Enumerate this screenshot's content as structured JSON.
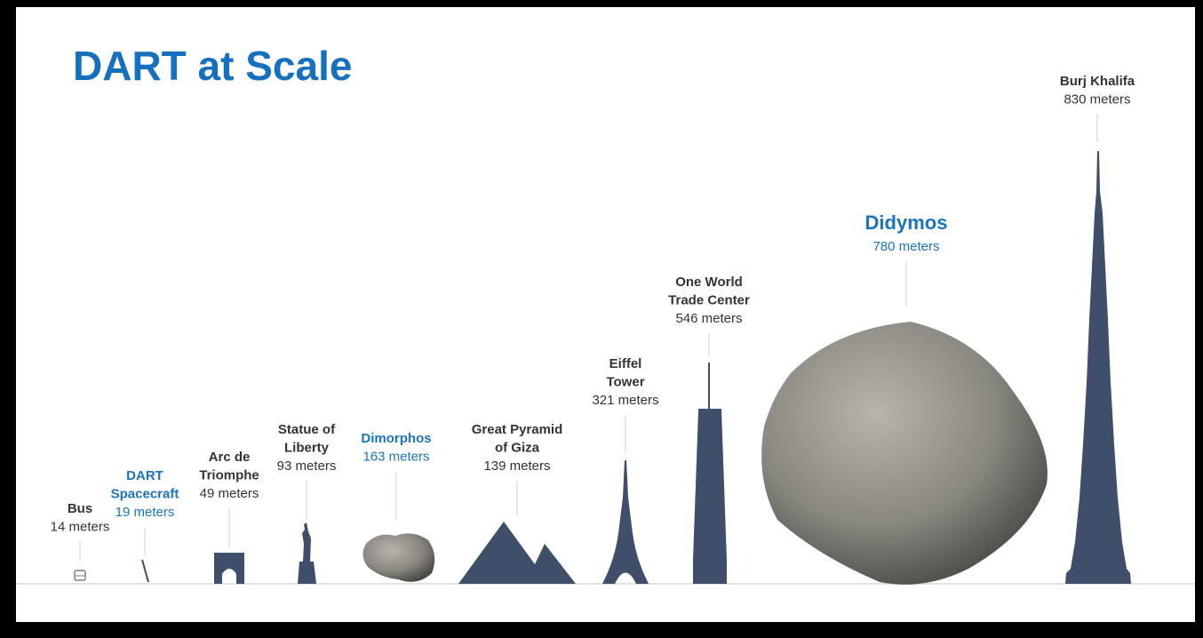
{
  "title": "DART at Scale",
  "items": [
    {
      "name_lines": [
        "Bus"
      ],
      "size": "14 meters",
      "color": "#333333"
    },
    {
      "name_lines": [
        "DART",
        "Spacecraft"
      ],
      "size": "19 meters",
      "color": "#1a74bf"
    },
    {
      "name_lines": [
        "Arc de",
        "Triomphe"
      ],
      "size": "49 meters",
      "color": "#333333"
    },
    {
      "name_lines": [
        "Statue of",
        "Liberty"
      ],
      "size": "93 meters",
      "color": "#333333"
    },
    {
      "name_lines": [
        "Dimorphos"
      ],
      "size": "163 meters",
      "color": "#1a74bf"
    },
    {
      "name_lines": [
        "Great Pyramid",
        "of Giza"
      ],
      "size": "139 meters",
      "color": "#333333"
    },
    {
      "name_lines": [
        "Eiffel",
        "Tower"
      ],
      "size": "321 meters",
      "color": "#333333"
    },
    {
      "name_lines": [
        "One World",
        "Trade Center"
      ],
      "size": "546 meters",
      "color": "#333333"
    },
    {
      "name_lines": [
        "Didymos"
      ],
      "size": "780 meters",
      "color": "#1a74bf"
    },
    {
      "name_lines": [
        "Burj Khalifa"
      ],
      "size": "830 meters",
      "color": "#333333"
    }
  ]
}
